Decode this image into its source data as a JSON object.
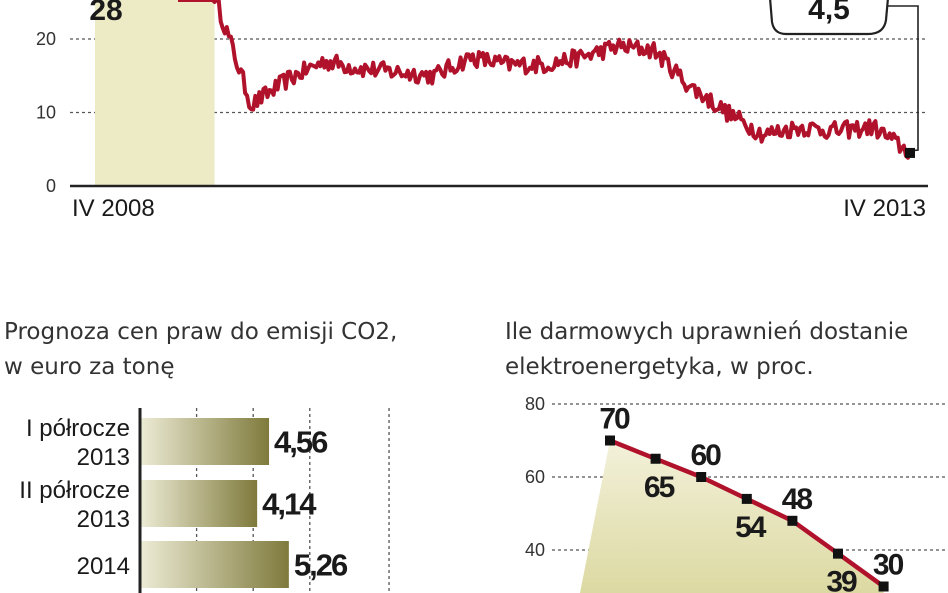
{
  "colors": {
    "line": "#b0122b",
    "area": "#ecebc6",
    "bar": "#7f7a3c",
    "bar_light": "#ecebd4",
    "text": "#1a1a1a",
    "axis": "#222222",
    "grid": "#555555"
  },
  "chart_data": [
    {
      "type": "line",
      "id": "price-history",
      "title": "",
      "xlabel": "",
      "ylabel": "",
      "x_tick_labels": [
        "IV 2008",
        "IV 2013"
      ],
      "y_ticks": [
        0,
        10,
        20
      ],
      "y_tick_labels": [
        "0",
        "10",
        "20"
      ],
      "ylim": [
        0,
        25
      ],
      "grid": true,
      "area_fill": true,
      "annotations": [
        {
          "text": "28",
          "target": "start"
        },
        {
          "text": "4,5",
          "target": "end"
        }
      ],
      "series": [
        {
          "x": [
            0,
            1,
            2,
            3,
            4,
            5,
            6,
            7,
            8,
            9,
            10,
            11,
            12,
            13,
            14,
            15,
            16,
            17,
            18,
            19,
            20
          ],
          "values": [
            28,
            26,
            11,
            14.5,
            17,
            16,
            15.5,
            15,
            17.5,
            16.5,
            16.5,
            17.5,
            19,
            18.5,
            13.5,
            10,
            7,
            8,
            7.5,
            8,
            4.5
          ]
        }
      ]
    },
    {
      "type": "bar",
      "id": "co2-forecast",
      "title": "Prognoza cen praw do emisji CO2, w euro za tonę",
      "title_lines": [
        "Prognoza cen praw do emisji CO2,",
        "w euro za tonę"
      ],
      "categories": [
        [
          "I półrocze",
          "2013"
        ],
        [
          "II półrocze",
          "2013"
        ],
        [
          "2014"
        ]
      ],
      "values": [
        4.56,
        4.14,
        5.26
      ],
      "value_labels": [
        "4,56",
        "4,14",
        "5,26"
      ],
      "xlim": [
        0,
        8
      ],
      "orientation": "horizontal",
      "grid": true
    },
    {
      "type": "line",
      "id": "free-allowances",
      "title": "Ile darmowych uprawnień dostanie elektroenergetyka, w proc.",
      "title_lines": [
        "Ile darmowych uprawnień dostanie",
        "elektroenergetyka, w proc."
      ],
      "y_ticks": [
        40,
        60,
        80
      ],
      "y_tick_labels": [
        "40",
        "60",
        "80"
      ],
      "ylim": [
        30,
        80
      ],
      "grid": true,
      "area_fill": true,
      "series": [
        {
          "values": [
            70,
            65,
            60,
            54,
            48,
            39,
            30
          ],
          "labels": [
            "70",
            "65",
            "60",
            "54",
            "48",
            "39",
            "30"
          ]
        }
      ]
    }
  ]
}
